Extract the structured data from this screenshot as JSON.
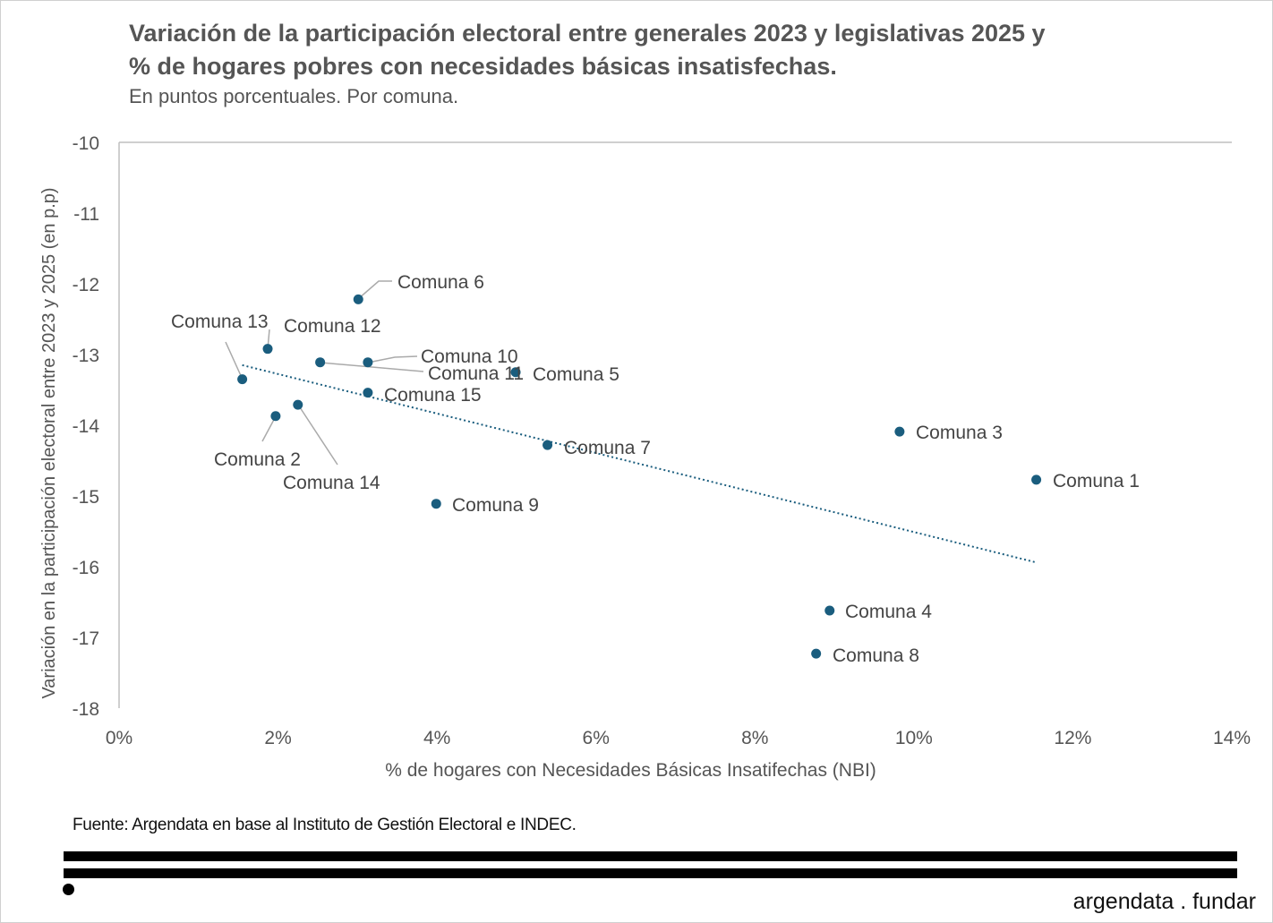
{
  "title_line1": "Variación de la participación electoral entre generales 2023 y legislativas 2025 y",
  "title_line2": "% de hogares pobres con necesidades básicas insatisfechas.",
  "subtitle": "En puntos porcentuales. Por comuna.",
  "source": "Fuente: Argendata en base al Instituto de Gestión Electoral e INDEC.",
  "brand": "argendata . fundar",
  "chart_data": {
    "type": "scatter",
    "xlabel": "% de hogares con Necesidades Básicas Insatifechas (NBI)",
    "ylabel": "Variación en la participación electoral entre 2023 y 2025 (en p.p)",
    "xlim": [
      0,
      14
    ],
    "ylim": [
      -18,
      -10
    ],
    "x_ticks": [
      "0%",
      "2%",
      "4%",
      "6%",
      "8%",
      "10%",
      "12%",
      "14%"
    ],
    "y_ticks": [
      "-10",
      "-11",
      "-12",
      "-13",
      "-14",
      "-15",
      "-16",
      "-17",
      "-18"
    ],
    "grid": false,
    "colors": {
      "points": "#1a5d7e",
      "trend": "#1a5d7e",
      "leader": "#aaaaaa",
      "axis": "#bfbfbf"
    },
    "points": [
      {
        "label": "Comuna 1",
        "x": 11.54,
        "y": -14.77
      },
      {
        "label": "Comuna 2",
        "x": 1.97,
        "y": -13.87
      },
      {
        "label": "Comuna 3",
        "x": 9.82,
        "y": -14.09
      },
      {
        "label": "Comuna 4",
        "x": 8.94,
        "y": -16.62
      },
      {
        "label": "Comuna 5",
        "x": 4.99,
        "y": -13.25
      },
      {
        "label": "Comuna 6",
        "x": 3.01,
        "y": -12.22
      },
      {
        "label": "Comuna 7",
        "x": 5.39,
        "y": -14.28
      },
      {
        "label": "Comuna 8",
        "x": 8.77,
        "y": -17.23
      },
      {
        "label": "Comuna 9",
        "x": 3.99,
        "y": -15.11
      },
      {
        "label": "Comuna 10",
        "x": 3.13,
        "y": -13.11
      },
      {
        "label": "Comuna 11",
        "x": 2.53,
        "y": -13.11
      },
      {
        "label": "Comuna 12",
        "x": 1.87,
        "y": -12.92
      },
      {
        "label": "Comuna 13",
        "x": 1.55,
        "y": -13.35
      },
      {
        "label": "Comuna 14",
        "x": 2.25,
        "y": -13.71
      },
      {
        "label": "Comuna 15",
        "x": 3.13,
        "y": -13.54
      }
    ],
    "trendline": {
      "style": "dotted linear",
      "from": {
        "x": 1.55,
        "y": -13.15
      },
      "to": {
        "x": 11.54,
        "y": -15.94
      }
    }
  }
}
